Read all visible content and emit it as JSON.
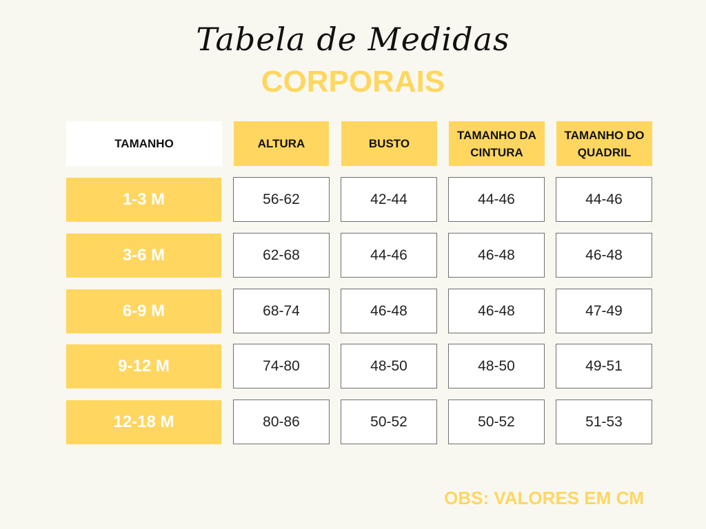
{
  "title": "Tabela de Medidas",
  "subtitle": "CORPORAIS",
  "headers": [
    "TAMANHO",
    "ALTURA",
    "BUSTO",
    "TAMANHO DA CINTURA",
    "TAMANHO DO QUADRIL"
  ],
  "rows": [
    {
      "size": "1-3 M",
      "values": [
        "56-62",
        "42-44",
        "44-46",
        "44-46"
      ]
    },
    {
      "size": "3-6 M",
      "values": [
        "62-68",
        "44-46",
        "46-48",
        "46-48"
      ]
    },
    {
      "size": "6-9 M",
      "values": [
        "68-74",
        "46-48",
        "46-48",
        "47-49"
      ]
    },
    {
      "size": "9-12 M",
      "values": [
        "74-80",
        "48-50",
        "48-50",
        "49-51"
      ]
    },
    {
      "size": "12-18 M",
      "values": [
        "80-86",
        "50-52",
        "50-52",
        "51-53"
      ]
    }
  ],
  "note": "OBS: VALORES EM CM",
  "colors": {
    "accent": "#ffd660",
    "background": "#f9f8f0"
  }
}
